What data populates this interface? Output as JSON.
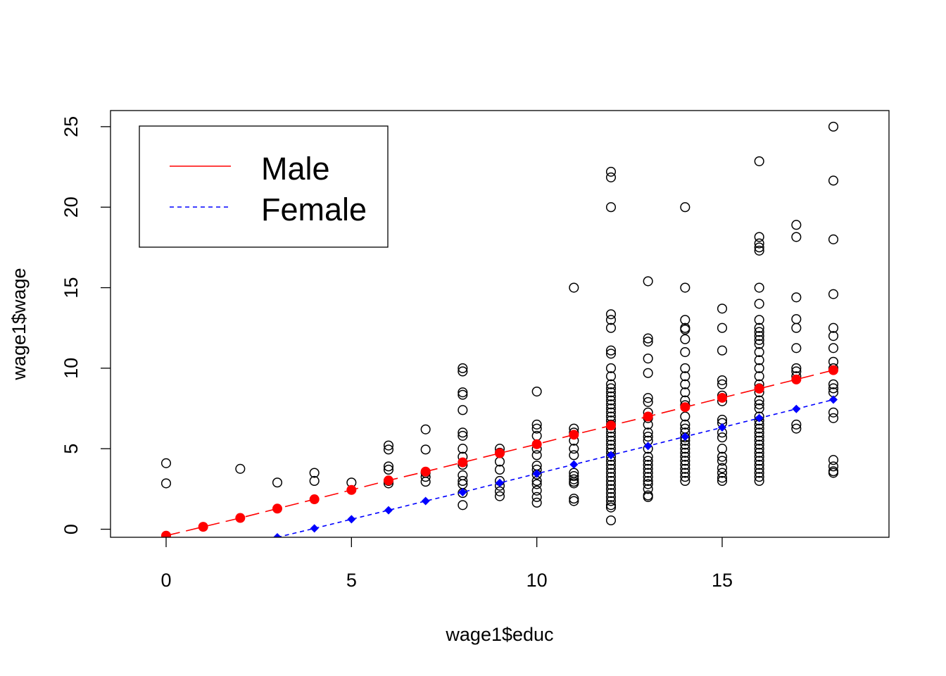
{
  "chart_data": {
    "type": "scatter",
    "title": "",
    "xlabel": "wage1$educ",
    "ylabel": "wage1$wage",
    "xlim": [
      -1.5,
      19.5
    ],
    "ylim": [
      -0.5,
      26
    ],
    "x_ticks": [
      0,
      5,
      10,
      15
    ],
    "y_ticks": [
      0,
      5,
      10,
      15,
      20,
      25
    ],
    "grid": false,
    "legend": {
      "position": "top-left",
      "entries": [
        {
          "label": "Male",
          "color": "#ff0000",
          "line": "solid"
        },
        {
          "label": "Female",
          "color": "#0000ff",
          "line": "dashed"
        }
      ]
    },
    "series": [
      {
        "kind": "observed",
        "marker": "open-circle",
        "color": "#000000",
        "points": [
          [
            0,
            4.1
          ],
          [
            0,
            2.85
          ],
          [
            2,
            3.75
          ],
          [
            3,
            2.9
          ],
          [
            4,
            3.5
          ],
          [
            4,
            3.0
          ],
          [
            5,
            2.9
          ],
          [
            6,
            5.2
          ],
          [
            6,
            4.95
          ],
          [
            6,
            3.9
          ],
          [
            6,
            3.7
          ],
          [
            6,
            3.0
          ],
          [
            6,
            2.85
          ],
          [
            7,
            6.2
          ],
          [
            7,
            4.95
          ],
          [
            7,
            3.5
          ],
          [
            7,
            3.25
          ],
          [
            7,
            2.95
          ],
          [
            8,
            10.0
          ],
          [
            8,
            9.8
          ],
          [
            8,
            8.5
          ],
          [
            8,
            8.35
          ],
          [
            8,
            7.4
          ],
          [
            8,
            6.0
          ],
          [
            8,
            5.8
          ],
          [
            8,
            5.0
          ],
          [
            8,
            4.5
          ],
          [
            8,
            4.0
          ],
          [
            8,
            3.35
          ],
          [
            8,
            3.0
          ],
          [
            8,
            2.8
          ],
          [
            8,
            2.25
          ],
          [
            8,
            1.5
          ],
          [
            9,
            5.0
          ],
          [
            9,
            4.75
          ],
          [
            9,
            4.2
          ],
          [
            9,
            3.7
          ],
          [
            9,
            3.0
          ],
          [
            9,
            2.7
          ],
          [
            9,
            2.35
          ],
          [
            9,
            2.05
          ],
          [
            10,
            8.55
          ],
          [
            10,
            6.5
          ],
          [
            10,
            6.25
          ],
          [
            10,
            5.8
          ],
          [
            10,
            5.0
          ],
          [
            10,
            4.6
          ],
          [
            10,
            3.95
          ],
          [
            10,
            3.7
          ],
          [
            10,
            3.4
          ],
          [
            10,
            3.0
          ],
          [
            10,
            2.8
          ],
          [
            10,
            2.4
          ],
          [
            10,
            2.0
          ],
          [
            10,
            1.65
          ],
          [
            11,
            15.0
          ],
          [
            11,
            6.25
          ],
          [
            11,
            6.0
          ],
          [
            11,
            5.5
          ],
          [
            11,
            5.0
          ],
          [
            11,
            4.6
          ],
          [
            11,
            3.5
          ],
          [
            11,
            3.3
          ],
          [
            11,
            3.1
          ],
          [
            11,
            2.95
          ],
          [
            11,
            2.85
          ],
          [
            11,
            1.9
          ],
          [
            11,
            1.75
          ],
          [
            12,
            22.2
          ],
          [
            12,
            21.85
          ],
          [
            12,
            20.0
          ],
          [
            12,
            13.35
          ],
          [
            12,
            13.0
          ],
          [
            12,
            12.5
          ],
          [
            12,
            11.1
          ],
          [
            12,
            10.9
          ],
          [
            12,
            10.0
          ],
          [
            12,
            9.5
          ],
          [
            12,
            9.0
          ],
          [
            12,
            8.75
          ],
          [
            12,
            8.5
          ],
          [
            12,
            8.25
          ],
          [
            12,
            8.0
          ],
          [
            12,
            7.75
          ],
          [
            12,
            7.5
          ],
          [
            12,
            7.25
          ],
          [
            12,
            7.0
          ],
          [
            12,
            6.75
          ],
          [
            12,
            6.5
          ],
          [
            12,
            6.25
          ],
          [
            12,
            6.0
          ],
          [
            12,
            5.75
          ],
          [
            12,
            5.5
          ],
          [
            12,
            5.25
          ],
          [
            12,
            5.0
          ],
          [
            12,
            4.75
          ],
          [
            12,
            4.5
          ],
          [
            12,
            4.25
          ],
          [
            12,
            4.0
          ],
          [
            12,
            3.75
          ],
          [
            12,
            3.5
          ],
          [
            12,
            3.25
          ],
          [
            12,
            3.0
          ],
          [
            12,
            2.75
          ],
          [
            12,
            2.5
          ],
          [
            12,
            2.25
          ],
          [
            12,
            2.0
          ],
          [
            12,
            1.75
          ],
          [
            12,
            1.5
          ],
          [
            12,
            1.35
          ],
          [
            12,
            0.55
          ],
          [
            13,
            15.4
          ],
          [
            13,
            11.85
          ],
          [
            13,
            11.65
          ],
          [
            13,
            10.6
          ],
          [
            13,
            9.7
          ],
          [
            13,
            8.15
          ],
          [
            13,
            7.9
          ],
          [
            13,
            7.25
          ],
          [
            13,
            6.9
          ],
          [
            13,
            6.5
          ],
          [
            13,
            6.0
          ],
          [
            13,
            5.75
          ],
          [
            13,
            5.5
          ],
          [
            13,
            5.0
          ],
          [
            13,
            4.5
          ],
          [
            13,
            4.25
          ],
          [
            13,
            4.0
          ],
          [
            13,
            3.75
          ],
          [
            13,
            3.5
          ],
          [
            13,
            3.25
          ],
          [
            13,
            3.0
          ],
          [
            13,
            2.8
          ],
          [
            13,
            2.5
          ],
          [
            13,
            2.1
          ],
          [
            13,
            2.0
          ],
          [
            14,
            20.0
          ],
          [
            14,
            15.0
          ],
          [
            14,
            13.0
          ],
          [
            14,
            12.5
          ],
          [
            14,
            12.4
          ],
          [
            14,
            11.8
          ],
          [
            14,
            11.0
          ],
          [
            14,
            10.0
          ],
          [
            14,
            9.5
          ],
          [
            14,
            9.0
          ],
          [
            14,
            8.5
          ],
          [
            14,
            8.0
          ],
          [
            14,
            7.7
          ],
          [
            14,
            7.0
          ],
          [
            14,
            6.5
          ],
          [
            14,
            6.25
          ],
          [
            14,
            6.0
          ],
          [
            14,
            5.7
          ],
          [
            14,
            5.5
          ],
          [
            14,
            5.25
          ],
          [
            14,
            5.0
          ],
          [
            14,
            4.75
          ],
          [
            14,
            4.5
          ],
          [
            14,
            4.25
          ],
          [
            14,
            4.0
          ],
          [
            14,
            3.75
          ],
          [
            14,
            3.5
          ],
          [
            14,
            3.25
          ],
          [
            14,
            3.0
          ],
          [
            15,
            13.7
          ],
          [
            15,
            12.5
          ],
          [
            15,
            11.1
          ],
          [
            15,
            9.25
          ],
          [
            15,
            9.0
          ],
          [
            15,
            8.3
          ],
          [
            15,
            7.95
          ],
          [
            15,
            6.8
          ],
          [
            15,
            6.6
          ],
          [
            15,
            6.0
          ],
          [
            15,
            5.7
          ],
          [
            15,
            5.0
          ],
          [
            15,
            4.5
          ],
          [
            15,
            4.25
          ],
          [
            15,
            3.8
          ],
          [
            15,
            3.5
          ],
          [
            15,
            3.2
          ],
          [
            15,
            3.0
          ],
          [
            16,
            22.85
          ],
          [
            16,
            18.15
          ],
          [
            16,
            17.75
          ],
          [
            16,
            17.5
          ],
          [
            16,
            17.3
          ],
          [
            16,
            15.0
          ],
          [
            16,
            14.0
          ],
          [
            16,
            13.0
          ],
          [
            16,
            12.5
          ],
          [
            16,
            12.25
          ],
          [
            16,
            12.0
          ],
          [
            16,
            11.75
          ],
          [
            16,
            11.5
          ],
          [
            16,
            11.0
          ],
          [
            16,
            10.5
          ],
          [
            16,
            10.0
          ],
          [
            16,
            9.5
          ],
          [
            16,
            9.0
          ],
          [
            16,
            8.75
          ],
          [
            16,
            8.5
          ],
          [
            16,
            8.0
          ],
          [
            16,
            7.75
          ],
          [
            16,
            7.5
          ],
          [
            16,
            7.0
          ],
          [
            16,
            6.75
          ],
          [
            16,
            6.5
          ],
          [
            16,
            6.25
          ],
          [
            16,
            6.0
          ],
          [
            16,
            5.75
          ],
          [
            16,
            5.5
          ],
          [
            16,
            5.25
          ],
          [
            16,
            5.0
          ],
          [
            16,
            4.75
          ],
          [
            16,
            4.5
          ],
          [
            16,
            4.25
          ],
          [
            16,
            4.0
          ],
          [
            16,
            3.75
          ],
          [
            16,
            3.5
          ],
          [
            16,
            3.25
          ],
          [
            16,
            3.0
          ],
          [
            17,
            18.9
          ],
          [
            17,
            18.15
          ],
          [
            17,
            14.4
          ],
          [
            17,
            13.05
          ],
          [
            17,
            12.5
          ],
          [
            17,
            11.25
          ],
          [
            17,
            10.0
          ],
          [
            17,
            9.8
          ],
          [
            17,
            9.5
          ],
          [
            17,
            6.5
          ],
          [
            17,
            6.25
          ],
          [
            18,
            25.0
          ],
          [
            18,
            21.65
          ],
          [
            18,
            18.0
          ],
          [
            18,
            14.6
          ],
          [
            18,
            12.5
          ],
          [
            18,
            12.0
          ],
          [
            18,
            11.25
          ],
          [
            18,
            10.4
          ],
          [
            18,
            10.0
          ],
          [
            18,
            9.0
          ],
          [
            18,
            8.75
          ],
          [
            18,
            8.5
          ],
          [
            18,
            7.25
          ],
          [
            18,
            6.9
          ],
          [
            18,
            4.3
          ],
          [
            18,
            3.9
          ],
          [
            18,
            3.6
          ],
          [
            18,
            3.5
          ]
        ]
      },
      {
        "kind": "fitted",
        "name": "Male",
        "marker": "filled-circle",
        "line": "dashed",
        "color": "#ff0000",
        "x": [
          0,
          1,
          2,
          3,
          4,
          5,
          6,
          7,
          8,
          9,
          10,
          11,
          12,
          13,
          14,
          15,
          16,
          17,
          18
        ],
        "y": [
          -0.4,
          0.15,
          0.7,
          1.28,
          1.86,
          2.44,
          3.03,
          3.58,
          4.15,
          4.72,
          5.28,
          5.87,
          6.44,
          7.0,
          7.58,
          8.16,
          8.73,
          9.3,
          9.88
        ]
      },
      {
        "kind": "fitted",
        "name": "Female",
        "marker": "filled-diamond",
        "line": "dotted",
        "color": "#0000ff",
        "x": [
          3,
          4,
          5,
          6,
          7,
          8,
          9,
          10,
          11,
          12,
          13,
          14,
          15,
          16,
          17,
          18
        ],
        "y": [
          -0.5,
          0.05,
          0.62,
          1.18,
          1.75,
          2.3,
          2.88,
          3.45,
          4.02,
          4.6,
          5.17,
          5.75,
          6.32,
          6.9,
          7.47,
          8.05
        ]
      }
    ]
  }
}
